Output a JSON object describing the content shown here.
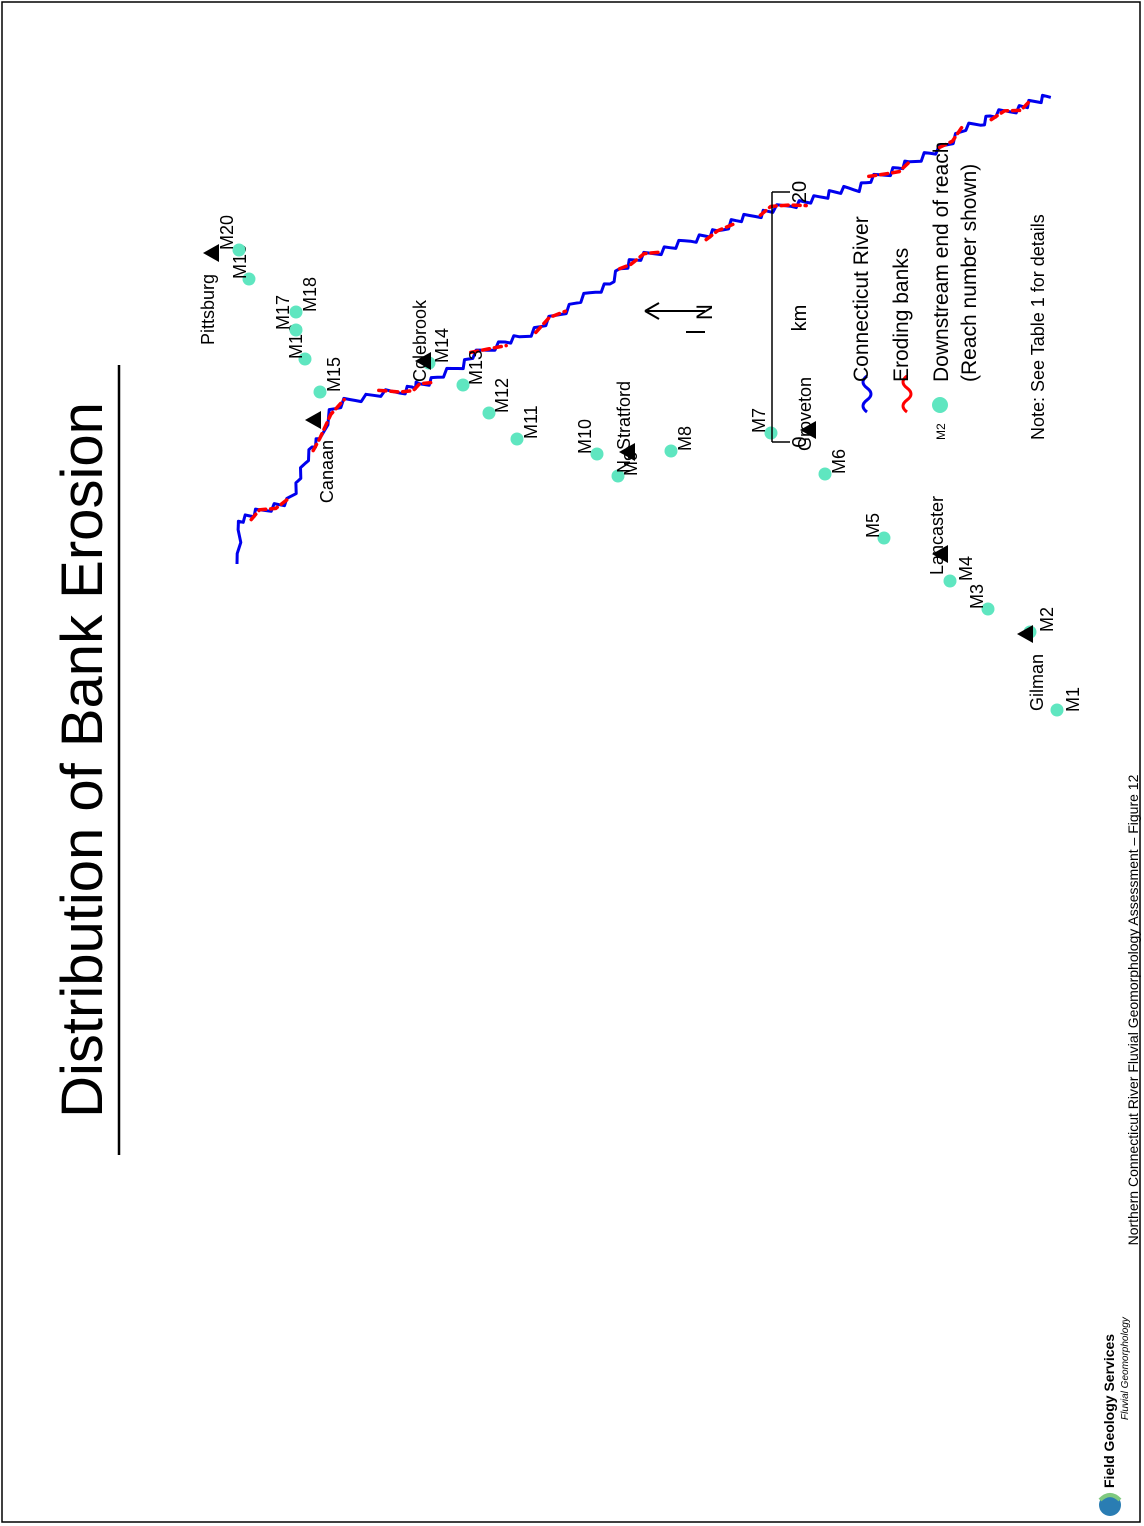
{
  "title": "Distribution of Bank Erosion",
  "footer": "Northern Connecticut River Fluvial Geomorphology Assessment – Figure 12",
  "logo": {
    "text": "Field Geology Services",
    "subtext": "Fluvial Geomorphology"
  },
  "north_label": "N",
  "scale_bar": {
    "start": "0",
    "unit": "km",
    "end": "20"
  },
  "legend": {
    "river": "Connecticut River",
    "eroding": "Eroding banks",
    "reach_line1": "Downstream end of reach",
    "reach_line2": "(Reach number shown)",
    "reach_sample": "M2"
  },
  "note": "Note: See Table 1 for details",
  "colors": {
    "river": "#0000ee",
    "eroding": "#ff0000",
    "reach_point": "#5fe6c0"
  },
  "towns": [
    {
      "id": "pittsburg",
      "name": "Pittsburg"
    },
    {
      "id": "canaan",
      "name": "Canaan"
    },
    {
      "id": "colebrook",
      "name": "Colebrook"
    },
    {
      "id": "nstratford",
      "name": "N. Stratford"
    },
    {
      "id": "groveton",
      "name": "Groveton"
    },
    {
      "id": "lancaster",
      "name": "Lancaster"
    },
    {
      "id": "gilman",
      "name": "Gilman"
    }
  ],
  "reaches": [
    "M1",
    "M2",
    "M3",
    "M4",
    "M5",
    "M6",
    "M7",
    "M8",
    "M9",
    "M10",
    "M11",
    "M12",
    "M13",
    "M14",
    "M15",
    "M16",
    "M17",
    "M18",
    "M19",
    "M20"
  ]
}
